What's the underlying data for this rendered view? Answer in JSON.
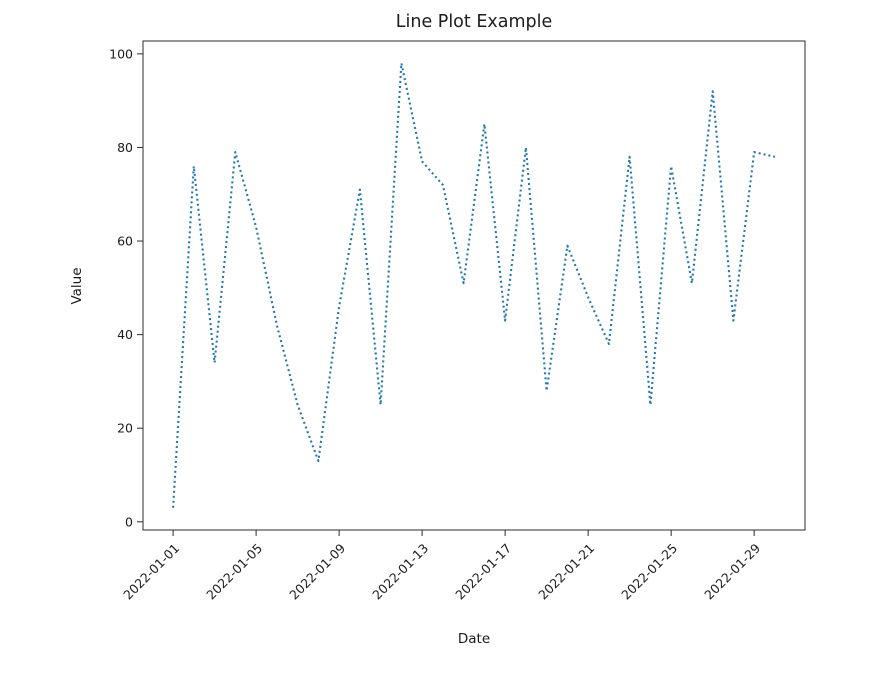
{
  "figure": {
    "background": "#ffffff",
    "spine_color": "#2b2b2b"
  },
  "chart_data": {
    "type": "line",
    "title": "Line Plot Example",
    "xlabel": "Date",
    "ylabel": "Value",
    "line_color": "#1f77b4",
    "line_style": "dotted",
    "grid": false,
    "legend": null,
    "x": [
      "2022-01-01",
      "2022-01-02",
      "2022-01-03",
      "2022-01-04",
      "2022-01-05",
      "2022-01-06",
      "2022-01-07",
      "2022-01-08",
      "2022-01-09",
      "2022-01-10",
      "2022-01-11",
      "2022-01-12",
      "2022-01-13",
      "2022-01-14",
      "2022-01-15",
      "2022-01-16",
      "2022-01-17",
      "2022-01-18",
      "2022-01-19",
      "2022-01-20",
      "2022-01-21",
      "2022-01-22",
      "2022-01-23",
      "2022-01-24",
      "2022-01-25",
      "2022-01-26",
      "2022-01-27",
      "2022-01-28",
      "2022-01-29",
      "2022-01-30"
    ],
    "values": [
      3,
      76,
      34,
      79,
      63,
      42,
      25,
      13,
      46,
      71,
      25,
      98,
      77,
      72,
      51,
      85,
      43,
      80,
      28,
      59,
      48,
      38,
      78,
      25,
      76,
      51,
      92,
      43,
      79,
      78
    ],
    "ylim": [
      0,
      100
    ],
    "yticks": [
      "0",
      "20",
      "40",
      "60",
      "80",
      "100"
    ],
    "ytick_values": [
      0,
      20,
      40,
      60,
      80,
      100
    ],
    "xtick_indices": [
      0,
      4,
      8,
      12,
      16,
      20,
      24,
      28
    ],
    "xtick_labels": [
      "2022-01-01",
      "2022-01-05",
      "2022-01-09",
      "2022-01-13",
      "2022-01-17",
      "2022-01-21",
      "2022-01-25",
      "2022-01-29"
    ],
    "xtick_rotation_deg": 45
  }
}
